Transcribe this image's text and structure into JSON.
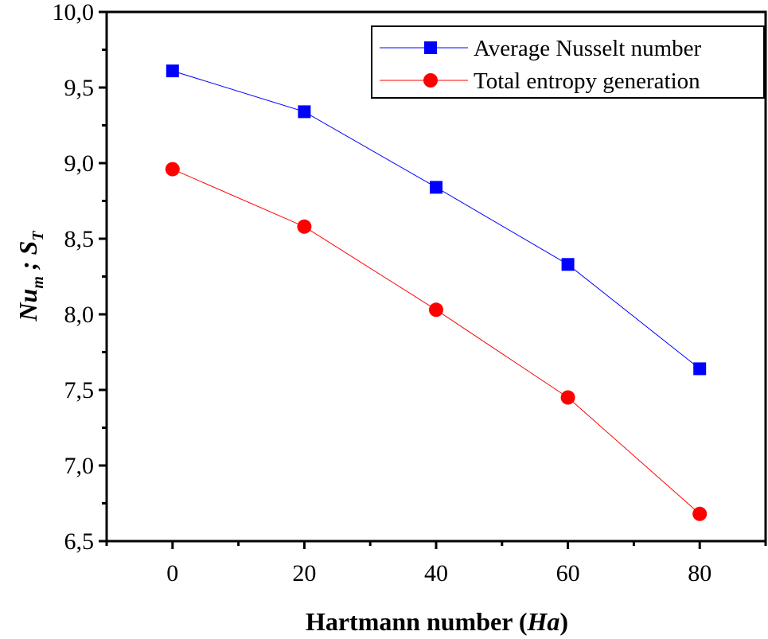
{
  "chart_data": {
    "type": "line",
    "title": "",
    "xlabel": "Hartmann number (Ha)",
    "xlabel_parts": {
      "main": "Hartmann number (",
      "italic": "Ha",
      "close": ")"
    },
    "ylabel_parts": {
      "nu": "Nu",
      "m": "m",
      "sep": " ; ",
      "s": "S",
      "t": "T"
    },
    "ylabel": "Nu_m ; S_T",
    "xlim": [
      -10,
      90
    ],
    "ylim": [
      6.5,
      10.0
    ],
    "x": [
      0,
      20,
      40,
      60,
      80
    ],
    "x_ticks": [
      "0",
      "20",
      "40",
      "60",
      "80"
    ],
    "y_ticks": [
      "6,5",
      "7,0",
      "7,5",
      "8,0",
      "8,5",
      "9,0",
      "9,5",
      "10,0"
    ],
    "grid": false,
    "legend_position": "top-right",
    "series": [
      {
        "name": "Average Nusselt number",
        "marker": "square",
        "color": "#0000ff",
        "values": [
          9.61,
          9.34,
          8.84,
          8.33,
          7.64
        ]
      },
      {
        "name": "Total entropy generation",
        "marker": "circle",
        "color": "#ff0000",
        "values": [
          8.96,
          8.58,
          8.03,
          7.45,
          6.68
        ]
      }
    ]
  }
}
